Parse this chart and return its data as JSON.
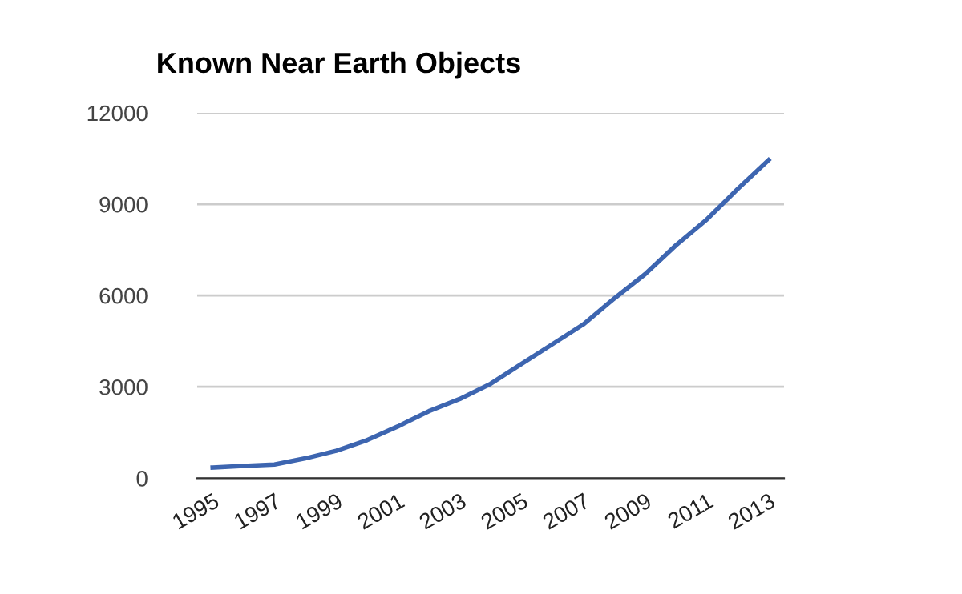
{
  "chart_data": {
    "type": "line",
    "title": "Known Near Earth Objects",
    "categories": [
      "1995",
      null,
      "1997",
      null,
      "1999",
      null,
      "2001",
      null,
      "2003",
      null,
      "2005",
      null,
      "2007",
      null,
      "2009",
      null,
      "2011",
      null,
      "2013"
    ],
    "series": [
      {
        "color": "#3d65b0",
        "values": [
          350,
          400,
          450,
          650,
          900,
          1250,
          1700,
          2200,
          2600,
          3100,
          3750,
          4400,
          5050,
          5900,
          6700,
          7650,
          8500,
          9500,
          10450
        ]
      }
    ],
    "ylim": [
      0,
      12000
    ],
    "yticks": [
      0,
      3000,
      6000,
      9000,
      12000
    ],
    "grid": "y",
    "legend": false,
    "marker": "none",
    "line_style": "solid"
  }
}
